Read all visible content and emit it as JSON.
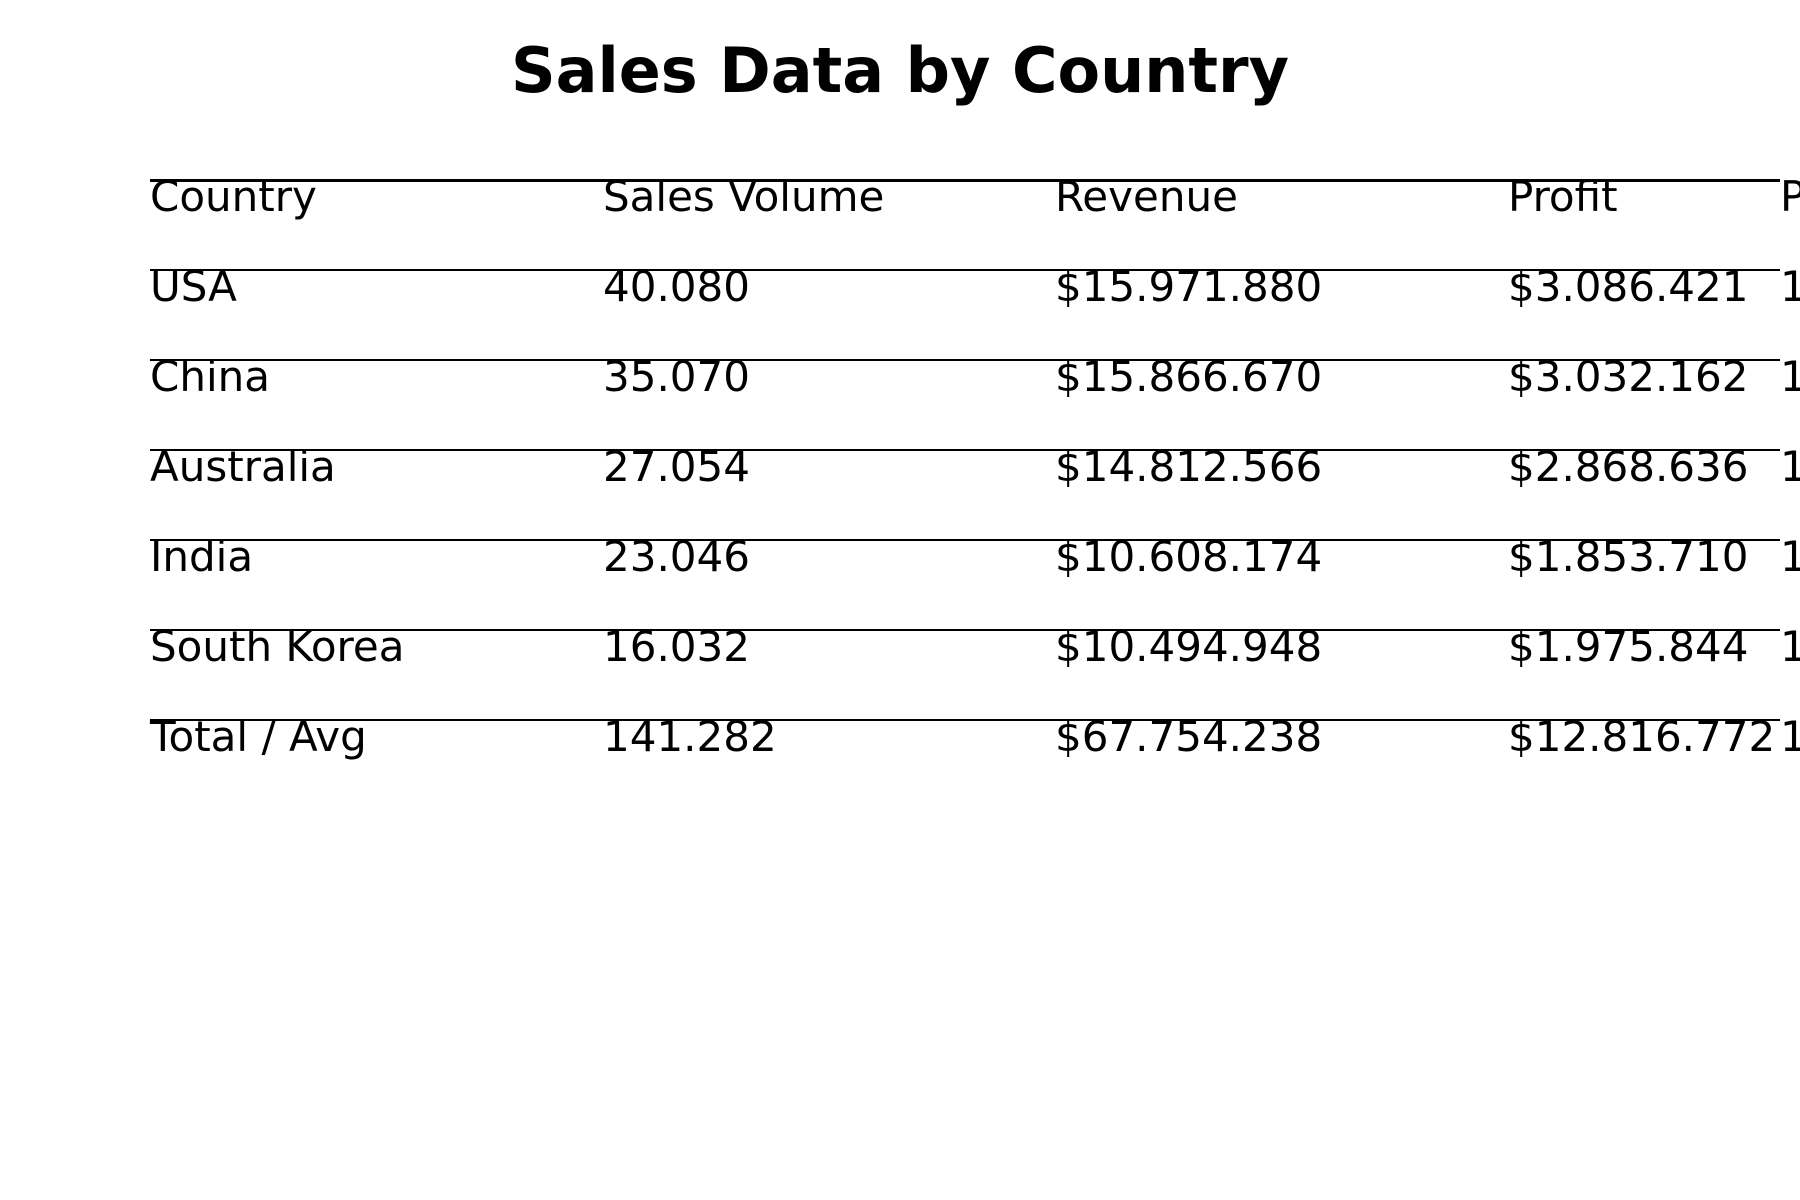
{
  "chart_data": {
    "type": "table",
    "title": "Sales Data by Country",
    "columns": [
      "Country",
      "Sales Volume",
      "Revenue",
      "Profit",
      "Pr"
    ],
    "rows": [
      [
        "USA",
        "40.080",
        "$15.971.880",
        "$3.086.421",
        "1"
      ],
      [
        "China",
        "35.070",
        "$15.866.670",
        "$3.032.162",
        "1"
      ],
      [
        "Australia",
        "27.054",
        "$14.812.566",
        "$2.868.636",
        "1"
      ],
      [
        "India",
        "23.046",
        "$10.608.174",
        "$1.853.710",
        "1"
      ],
      [
        "South Korea",
        "16.032",
        "$10.494.948",
        "$1.975.844",
        "1"
      ],
      [
        "Total / Avg",
        "141.282",
        "$67.754.238",
        "$12.816.772",
        "1"
      ]
    ]
  }
}
